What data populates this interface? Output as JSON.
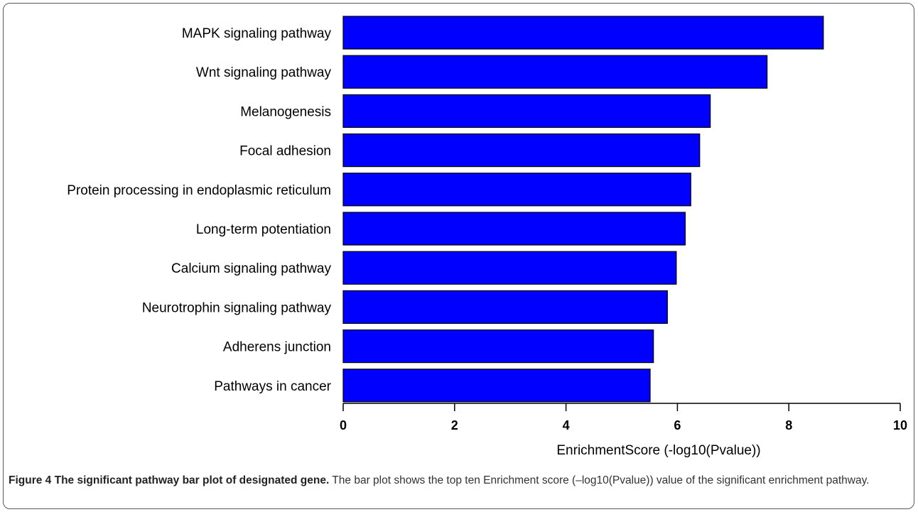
{
  "chart_data": {
    "type": "bar",
    "orientation": "horizontal",
    "categories": [
      "MAPK signaling pathway",
      "Wnt signaling pathway",
      "Melanogenesis",
      "Focal adhesion",
      "Protein processing in endoplasmic reticulum",
      "Long-term potentiation",
      "Calcium signaling pathway",
      "Neurotrophin signaling pathway",
      "Adherens junction",
      "Pathways in cancer"
    ],
    "values": [
      8.62,
      7.61,
      6.59,
      6.4,
      6.24,
      6.14,
      5.98,
      5.82,
      5.57,
      5.51
    ],
    "xlabel": "EnrichmentScore (-log10(Pvalue))",
    "ylabel": "",
    "xlim": [
      0,
      10
    ],
    "xticks": [
      "0",
      "2",
      "4",
      "6",
      "8",
      "10"
    ],
    "grid": false,
    "legend": "none",
    "bar_color": "#0000ff",
    "bar_edge_color": "#000000"
  },
  "caption": {
    "title": "Figure 4 The significant pathway bar plot of designated gene.",
    "text": " The bar plot shows the top ten Enrichment score (–log10(Pvalue)) value of the significant enrichment pathway."
  }
}
